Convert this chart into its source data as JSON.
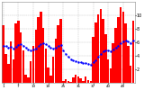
{
  "bar_values": [
    8.5,
    4.2,
    2.8,
    6.1,
    3.5,
    8.8,
    9.2,
    7.5,
    4.8,
    1.2,
    0.8,
    3.2,
    5.5,
    7.8,
    9.8,
    10.5,
    8.2,
    5.1,
    2.2,
    1.1,
    3.8,
    6.5,
    8.5,
    9.5,
    0.2,
    0.5,
    0.3,
    0.1,
    0.8,
    1.2,
    0.9,
    0.6,
    0.3,
    0.9,
    0.4,
    0.2,
    6.8,
    8.9,
    10.2,
    11.0,
    9.5,
    7.2,
    3.5,
    2.1,
    5.8,
    8.2,
    9.8,
    11.2,
    10.5,
    8.8,
    5.5,
    2.5,
    9.2
  ],
  "running_avg": [
    5.5,
    5.4,
    5.2,
    5.3,
    5.1,
    5.3,
    5.6,
    5.7,
    5.5,
    5.2,
    4.9,
    4.8,
    4.9,
    5.1,
    5.4,
    5.7,
    5.8,
    5.7,
    5.5,
    5.2,
    5.1,
    5.2,
    5.4,
    5.6,
    4.8,
    4.3,
    3.8,
    3.5,
    3.3,
    3.2,
    3.1,
    3.0,
    2.9,
    2.9,
    2.8,
    2.7,
    3.0,
    3.3,
    3.8,
    4.2,
    4.6,
    4.8,
    4.8,
    4.7,
    4.9,
    5.2,
    5.5,
    5.9,
    6.1,
    6.2,
    6.1,
    5.9,
    6.2
  ],
  "bar_color": "#ff0000",
  "avg_color": "#0000ff",
  "bg_color": "#ffffff",
  "grid_color": "#bbbbbb",
  "ylim": [
    0,
    12
  ],
  "ytick_positions": [
    2,
    4,
    6,
    8,
    10
  ],
  "ytick_labels": [
    "2",
    "4",
    "6",
    "8",
    "10"
  ],
  "tick_fontsize": 3.5
}
